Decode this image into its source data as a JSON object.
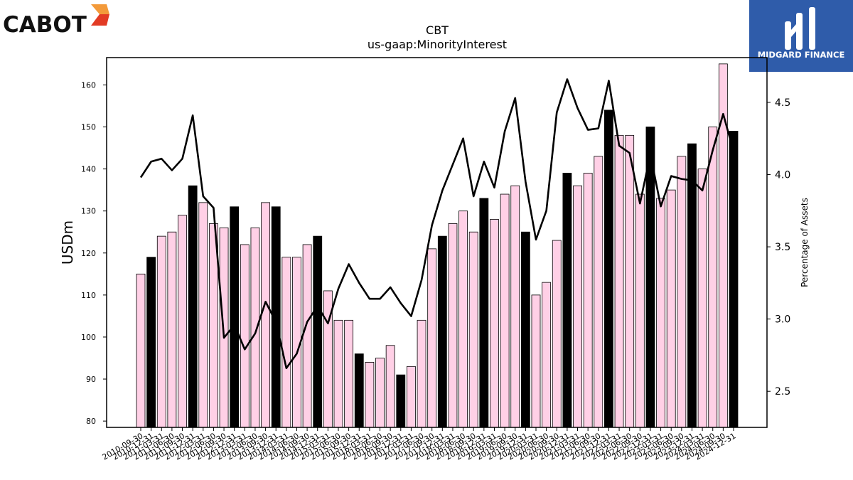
{
  "logos": {
    "left_text": "CABOT",
    "right_text": "MIDGARD FINANCE"
  },
  "chart_data": {
    "type": "bar",
    "title": "CBT",
    "subtitle": "us-gaap:MinorityInterest",
    "ylabel": "USDm",
    "y2label": "Percentage of Assets",
    "ylim": [
      78.5,
      166.5
    ],
    "y2lim": [
      2.25,
      4.81
    ],
    "yticks": [
      80,
      90,
      100,
      110,
      120,
      130,
      140,
      150,
      160
    ],
    "y2ticks": [
      2.5,
      3.0,
      3.5,
      4.0,
      4.5
    ],
    "categories": [
      "2010-09-30",
      "2010-12-31",
      "2011-03-31",
      "2011-06-30",
      "2011-09-30",
      "2011-12-31",
      "2012-03-31",
      "2012-06-30",
      "2012-09-30",
      "2012-12-31",
      "2013-03-31",
      "2013-06-30",
      "2013-09-30",
      "2013-12-31",
      "2014-03-31",
      "2014-06-30",
      "2014-09-30",
      "2014-12-31",
      "2015-03-31",
      "2015-06-30",
      "2015-09-30",
      "2015-12-31",
      "2016-03-31",
      "2016-06-30",
      "2016-09-30",
      "2016-12-31",
      "2017-03-31",
      "2017-06-30",
      "2017-09-30",
      "2017-12-31",
      "2018-03-31",
      "2018-06-30",
      "2018-09-30",
      "2018-12-31",
      "2019-03-31",
      "2019-06-30",
      "2019-09-30",
      "2019-12-31",
      "2020-03-31",
      "2020-06-30",
      "2020-09-30",
      "2020-12-31",
      "2021-03-31",
      "2021-06-30",
      "2021-09-30",
      "2021-12-31",
      "2022-03-31",
      "2022-06-30",
      "2022-09-30",
      "2022-12-31",
      "2023-03-31",
      "2023-06-30",
      "2023-09-30",
      "2023-12-31",
      "2024-03-31",
      "2024-06-30",
      "2024-09-30",
      "2024-12-31"
    ],
    "series": [
      {
        "type": "bar",
        "values": [
          115,
          119,
          124,
          125,
          129,
          136,
          132,
          127,
          126,
          131,
          122,
          126,
          132,
          131,
          119,
          119,
          122,
          124,
          111,
          104,
          104,
          96,
          94,
          95,
          98,
          91,
          93,
          104,
          121,
          124,
          127,
          130,
          125,
          133,
          128,
          134,
          136,
          125,
          110,
          113,
          123,
          139,
          136,
          139,
          143,
          154,
          148,
          148,
          134,
          150,
          133,
          135,
          143,
          146,
          140,
          150,
          165,
          149
        ],
        "highlight": [
          false,
          true,
          false,
          false,
          false,
          true,
          false,
          false,
          false,
          true,
          false,
          false,
          false,
          true,
          false,
          false,
          false,
          true,
          false,
          false,
          false,
          true,
          false,
          false,
          false,
          true,
          false,
          false,
          false,
          true,
          false,
          false,
          false,
          true,
          false,
          false,
          false,
          true,
          false,
          false,
          false,
          true,
          false,
          false,
          false,
          true,
          false,
          false,
          false,
          true,
          false,
          false,
          false,
          true,
          false,
          false,
          false,
          true
        ],
        "colors": {
          "normal": "#ffd0e6",
          "highlight": "#000000"
        }
      },
      {
        "type": "line",
        "axis": "right",
        "color": "#000000",
        "values": [
          3.98,
          4.09,
          4.11,
          4.03,
          4.11,
          4.41,
          3.85,
          3.77,
          2.87,
          2.96,
          2.79,
          2.9,
          3.12,
          2.98,
          2.66,
          2.76,
          2.98,
          3.09,
          2.97,
          3.21,
          3.38,
          3.25,
          3.14,
          3.14,
          3.22,
          3.11,
          3.02,
          3.27,
          3.65,
          3.89,
          4.07,
          4.25,
          3.85,
          4.09,
          3.91,
          4.3,
          4.53,
          3.95,
          3.55,
          3.75,
          4.43,
          4.66,
          4.46,
          4.31,
          4.32,
          4.65,
          4.2,
          4.15,
          3.8,
          4.14,
          3.78,
          3.99,
          3.97,
          3.96,
          3.89,
          4.17,
          4.42,
          4.16
        ]
      }
    ],
    "grid": false,
    "legend": "none"
  }
}
